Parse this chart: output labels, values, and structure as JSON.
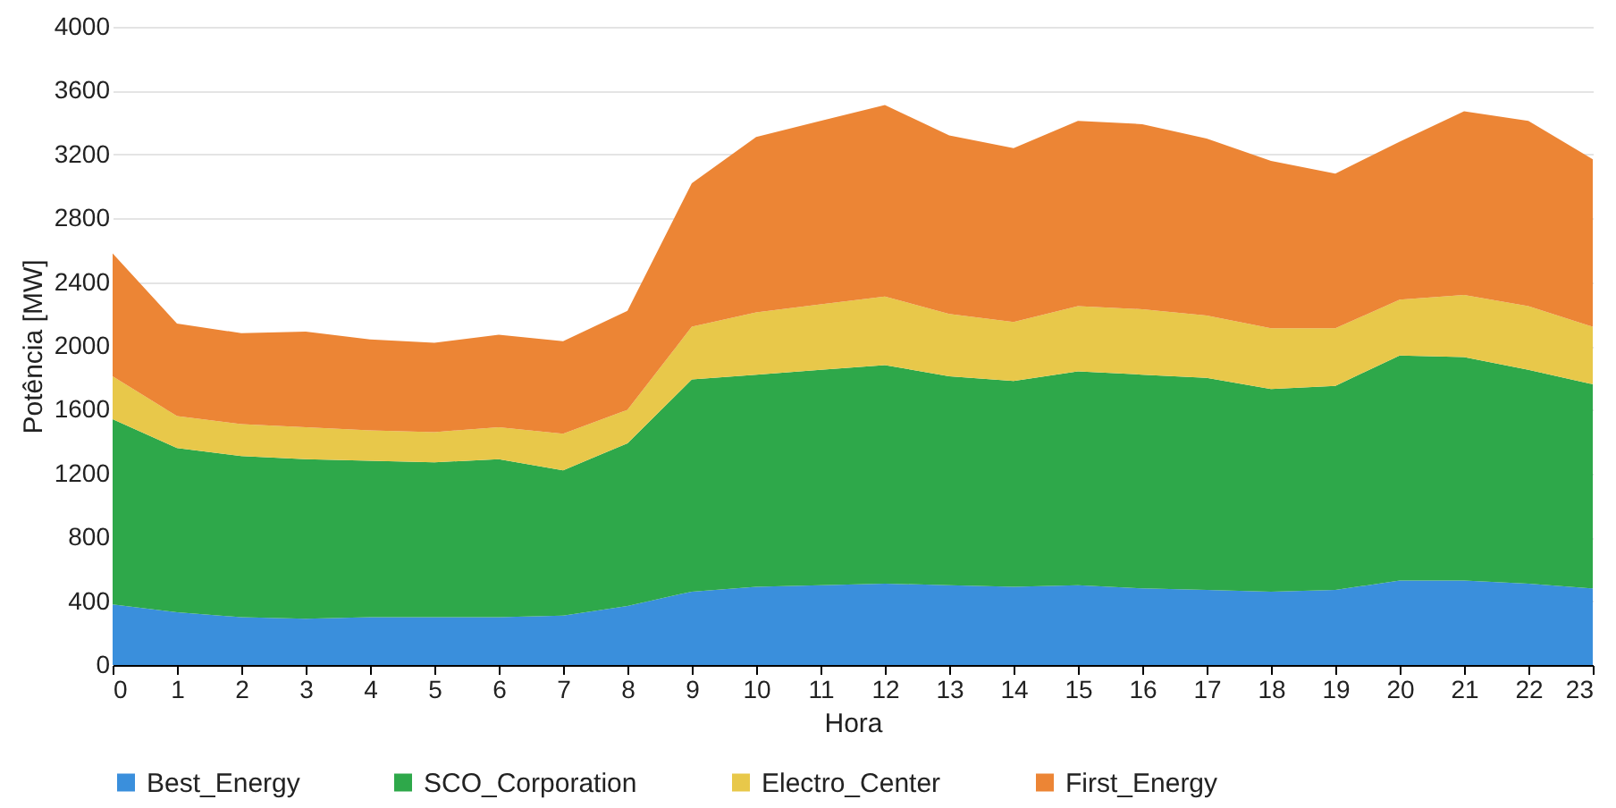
{
  "chart_data": {
    "type": "area",
    "stacked": true,
    "xlabel": "Hora",
    "ylabel": "Potência [MW]",
    "x": [
      0,
      1,
      2,
      3,
      4,
      5,
      6,
      7,
      8,
      9,
      10,
      11,
      12,
      13,
      14,
      15,
      16,
      17,
      18,
      19,
      20,
      21,
      22,
      23
    ],
    "xlim": [
      0,
      23
    ],
    "xticks": [
      0,
      1,
      2,
      3,
      4,
      5,
      6,
      7,
      8,
      9,
      10,
      11,
      12,
      13,
      14,
      15,
      16,
      17,
      18,
      19,
      20,
      21,
      22,
      23
    ],
    "ylim": [
      0,
      4000
    ],
    "yticks": [
      0,
      400,
      800,
      1200,
      1600,
      2000,
      2400,
      2800,
      3200,
      3600,
      4000
    ],
    "grid": "y",
    "legend": "bottom",
    "series": [
      {
        "name": "Best_Energy",
        "color": "#3a8fdc",
        "values": [
          380,
          330,
          300,
          290,
          300,
          300,
          300,
          310,
          370,
          460,
          490,
          500,
          510,
          500,
          490,
          500,
          480,
          470,
          460,
          470,
          530,
          530,
          510,
          480
        ]
      },
      {
        "name": "SCO_Corporation",
        "color": "#2ea84a",
        "values": [
          1160,
          1030,
          1010,
          1000,
          980,
          970,
          990,
          910,
          1020,
          1330,
          1330,
          1350,
          1370,
          1310,
          1290,
          1340,
          1340,
          1330,
          1270,
          1280,
          1410,
          1400,
          1340,
          1280
        ]
      },
      {
        "name": "Electro_Center",
        "color": "#e8c84a",
        "values": [
          270,
          200,
          200,
          200,
          190,
          190,
          200,
          230,
          210,
          330,
          390,
          410,
          430,
          390,
          370,
          410,
          410,
          390,
          380,
          360,
          350,
          390,
          400,
          360
        ]
      },
      {
        "name": "First_Energy",
        "color": "#ec8535",
        "values": [
          770,
          580,
          570,
          600,
          570,
          560,
          580,
          580,
          620,
          900,
          1100,
          1150,
          1200,
          1120,
          1090,
          1160,
          1160,
          1110,
          1050,
          970,
          990,
          1150,
          1160,
          1050
        ]
      }
    ]
  }
}
